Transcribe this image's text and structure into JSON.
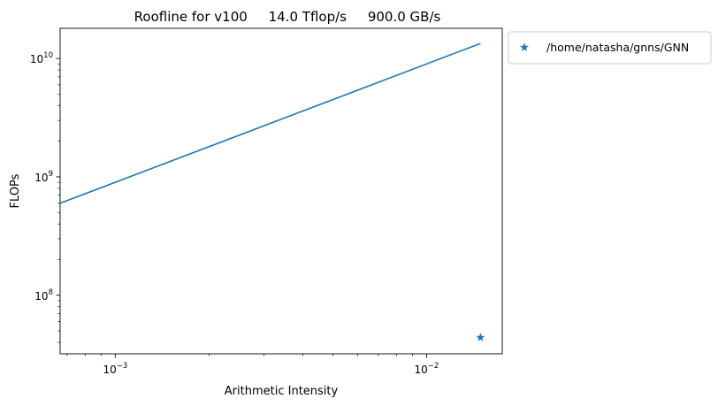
{
  "chart_data": {
    "type": "line",
    "title": "Roofline for v100     14.0 Tflop/s     900.0 GB/s",
    "xlabel": "Arithmetic Intensity",
    "ylabel": "FLOPs",
    "xscale": "log",
    "yscale": "log",
    "xlim": [
      0.000665,
      0.0175
    ],
    "ylim": [
      32000000,
      18000000000
    ],
    "grid": false,
    "legend_placement": "outside-top-right",
    "x_major_ticks": [
      0.001,
      0.01
    ],
    "x_tick_labels": [
      {
        "base": "10",
        "exp": "−3"
      },
      {
        "base": "10",
        "exp": "−2"
      }
    ],
    "y_major_ticks": [
      100000000,
      1000000000,
      10000000000
    ],
    "y_tick_labels": [
      {
        "base": "10",
        "exp": "8"
      },
      {
        "base": "10",
        "exp": "9"
      },
      {
        "base": "10",
        "exp": "10"
      }
    ],
    "series": [
      {
        "kind": "line",
        "color": "#1f77b4",
        "x": [
          0.000665,
          0.0149
        ],
        "y": [
          598500000,
          13410000000
        ]
      },
      {
        "kind": "scatter",
        "marker": "star",
        "name": "/home/natasha/gnns/GNN",
        "color": "#1f77b4",
        "x": [
          0.0149
        ],
        "y": [
          44000000
        ]
      }
    ]
  }
}
